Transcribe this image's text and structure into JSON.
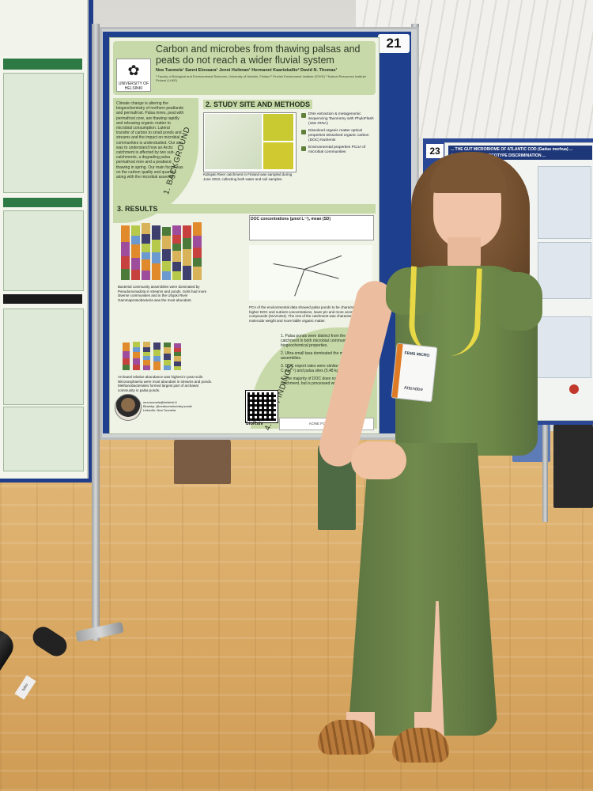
{
  "poster": {
    "board_number": "21",
    "title": "Carbon and microbes from thawing palsas and peats do not reach a wider fluvial system",
    "authors": "Nea Tuomela¹ Sanni Elovaara¹ Jenni Hultman¹ Hermanni Kaartokallio² David N. Thomas¹",
    "affiliations": "¹ Faculty of Biological and Environmental Sciences, University of Helsinki, Finland  ² Finnish Environment Institute (SYKE)  ³ Natural Resources Institute Finland (LUKE)",
    "logo_label": "UNIVERSITY OF HELSINKI",
    "background_label": "1. BACKGROUND",
    "background_text": "Climate change is altering the biogeochemistry of northern peatlands and permafrost. Palsa mires, peat with permafrost core, are thawing rapidly and releasing organic matter to microbial consumption. Lateral transfer of carbon to small ponds and streams and the impact on microbial communities is understudied. Our aim was to understand how an Arctic catchment is affected by two sub-catchments, a degrading palsa permafrost mire and a peatland thawing in spring. Our main focus was on the carbon quality and quantity, along with the microbial assembly.",
    "study_head": "2. STUDY SITE AND METHODS",
    "map_caption": "Kidisjoki River catchment in Finland was sampled during June 2023, collecting both water and soil samples.",
    "methods": [
      "DNA extraction & metagenomic sequencing Taxonomy with PhyloFlash (16S rRNA)",
      "Dissolved organic matter optical properties Dissolved organic carbon (DOC) Nutrients",
      "Environmental properties PCoA of microbial communities"
    ],
    "results_head": "3. RESULTS",
    "bacteria_text": "Bacterial community assemblies were dominated by Pseudomonadota in streams and ponds. Soils had more diverse communities and in the Utsjoki River Gammaproteobacteria was the most abundant.",
    "archaea_text": "Archaeal relative abundance was highest in peat soils. Nitrososphaeria were most abundant in streams and ponds. Methanobacteriales formed largest part of archaeal community in palsa ponds.",
    "doc_table_title": "DOC concentrations (µmol L⁻¹), mean (SD)",
    "pca_text": "PCA of the environmental data showed palsa ponds to be characterized by higher DOC and nutrient concentrations, lower pH and more aromatic compounds (SUVA254). The rest of the catchment was characterized by lower molecular weight and more labile organic matter.",
    "key_findings_label": "4. KEY FINDINGS",
    "key_findings": [
      "1. Palsa ponds were distinct from the rest of the catchment in both microbial community and biogeochemical properties.",
      "2. Ultra-small taxa dominated the microbial assemblies.",
      "3. DOC export rates were similar from peat (5.47 kg C day⁻¹) and palsa sites (5.48 kg C day⁻¹)",
      "4. The majority of DOC does not reach the catchment, but is processed within ponds"
    ],
    "contact": [
      "nea.tuomela@helsinki.fi",
      "Bluesky: @neatuomela.bsky.social",
      "LinkedIn: Nea Tuomela"
    ],
    "biorxiv": "bioRxiv",
    "funder": "KONE FOUNDATION"
  },
  "right_poster": {
    "board_number": "23",
    "title": "... THE GUT MICROBIOME OF ATLANTIC COD (Gadus morhua) ... ASSESSMENT AND ECOTYPE DISCRIMINATION ..."
  },
  "badge": {
    "org": "FEMS MICRO",
    "role": "Attendee"
  },
  "tube_label": "tubo",
  "colors": {
    "poster_green": "#c8d9a9",
    "board_blue": "#1d3f8e",
    "dress_green": "#6b8647",
    "lanyard_yellow": "#e8d845",
    "floor_wood": "#d9a964"
  }
}
